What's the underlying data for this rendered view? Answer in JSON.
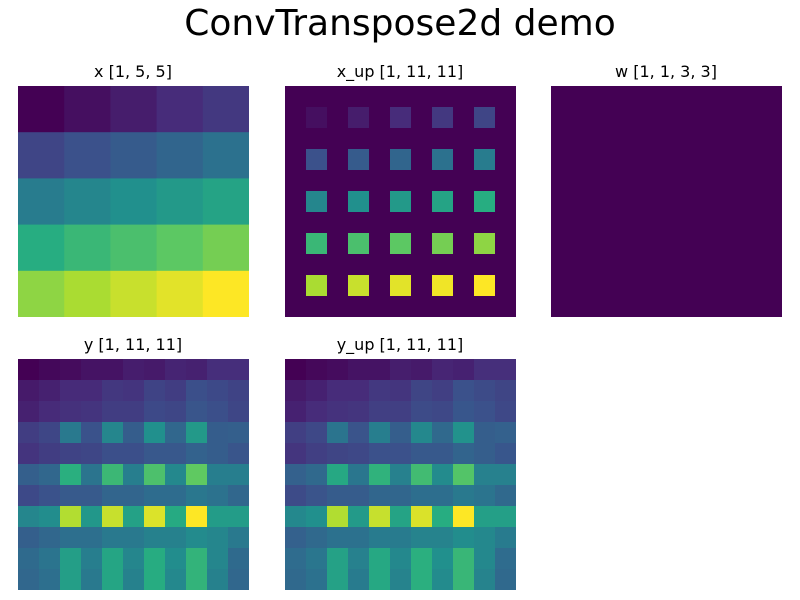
{
  "title": "ConvTranspose2d demo",
  "chart_data": [
    {
      "type": "heatmap",
      "title": "x [1, 5, 5]",
      "colormap": "viridis",
      "grid": false,
      "axes": "off",
      "values": [
        [
          0.0,
          0.04,
          0.08,
          0.125,
          0.167
        ],
        [
          0.21,
          0.25,
          0.29,
          0.33,
          0.375
        ],
        [
          0.42,
          0.46,
          0.5,
          0.54,
          0.58
        ],
        [
          0.625,
          0.67,
          0.71,
          0.75,
          0.79
        ],
        [
          0.83,
          0.875,
          0.92,
          0.96,
          1.0
        ]
      ]
    },
    {
      "type": "heatmap",
      "title": "x_up [1, 11, 11]",
      "colormap": "viridis",
      "grid": false,
      "axes": "off",
      "values": [
        [
          0,
          0,
          0,
          0,
          0,
          0,
          0,
          0,
          0,
          0,
          0
        ],
        [
          0,
          0.04,
          0,
          0.08,
          0,
          0.125,
          0,
          0.167,
          0,
          0.21,
          0
        ],
        [
          0,
          0,
          0,
          0,
          0,
          0,
          0,
          0,
          0,
          0,
          0
        ],
        [
          0,
          0.25,
          0,
          0.29,
          0,
          0.33,
          0,
          0.375,
          0,
          0.42,
          0
        ],
        [
          0,
          0,
          0,
          0,
          0,
          0,
          0,
          0,
          0,
          0,
          0
        ],
        [
          0,
          0.46,
          0,
          0.5,
          0,
          0.54,
          0,
          0.58,
          0,
          0.625,
          0
        ],
        [
          0,
          0,
          0,
          0,
          0,
          0,
          0,
          0,
          0,
          0,
          0
        ],
        [
          0,
          0.67,
          0,
          0.71,
          0,
          0.75,
          0,
          0.79,
          0,
          0.83,
          0
        ],
        [
          0,
          0,
          0,
          0,
          0,
          0,
          0,
          0,
          0,
          0,
          0
        ],
        [
          0,
          0.875,
          0,
          0.92,
          0,
          0.96,
          0,
          0.98,
          0,
          1.0,
          0
        ],
        [
          0,
          0,
          0,
          0,
          0,
          0,
          0,
          0,
          0,
          0,
          0
        ]
      ]
    },
    {
      "type": "heatmap",
      "title": "w [1, 1, 3, 3]",
      "colormap": "viridis",
      "grid": false,
      "axes": "off",
      "values": [
        [
          0,
          0,
          0
        ],
        [
          0,
          0,
          0
        ],
        [
          0,
          0,
          0
        ]
      ]
    },
    {
      "type": "heatmap",
      "title": "y [1, 11, 11]",
      "colormap": "viridis",
      "grid": false,
      "axes": "off",
      "values": [
        [
          0.0,
          0.02,
          0.03,
          0.05,
          0.05,
          0.08,
          0.07,
          0.1,
          0.09,
          0.13,
          0.13
        ],
        [
          0.07,
          0.09,
          0.12,
          0.12,
          0.16,
          0.15,
          0.2,
          0.18,
          0.24,
          0.22,
          0.2
        ],
        [
          0.09,
          0.12,
          0.14,
          0.15,
          0.18,
          0.18,
          0.22,
          0.21,
          0.26,
          0.24,
          0.21
        ],
        [
          0.18,
          0.21,
          0.4,
          0.25,
          0.45,
          0.29,
          0.49,
          0.33,
          0.53,
          0.29,
          0.3
        ],
        [
          0.15,
          0.18,
          0.2,
          0.21,
          0.24,
          0.24,
          0.27,
          0.27,
          0.31,
          0.29,
          0.26
        ],
        [
          0.3,
          0.33,
          0.62,
          0.38,
          0.66,
          0.42,
          0.7,
          0.46,
          0.74,
          0.42,
          0.42
        ],
        [
          0.22,
          0.25,
          0.28,
          0.28,
          0.32,
          0.32,
          0.35,
          0.35,
          0.39,
          0.37,
          0.33
        ],
        [
          0.45,
          0.48,
          0.87,
          0.52,
          0.9,
          0.56,
          0.93,
          0.6,
          0.98,
          0.54,
          0.54
        ],
        [
          0.3,
          0.33,
          0.36,
          0.36,
          0.4,
          0.4,
          0.43,
          0.43,
          0.47,
          0.45,
          0.4
        ],
        [
          0.34,
          0.38,
          0.55,
          0.42,
          0.58,
          0.45,
          0.61,
          0.48,
          0.64,
          0.45,
          0.34
        ],
        [
          0.33,
          0.36,
          0.55,
          0.4,
          0.58,
          0.43,
          0.61,
          0.46,
          0.64,
          0.43,
          0.33
        ]
      ]
    },
    {
      "type": "heatmap",
      "title": "y_up [1, 11, 11]",
      "colormap": "viridis",
      "grid": false,
      "axes": "off",
      "values": [
        [
          0.0,
          0.02,
          0.03,
          0.05,
          0.05,
          0.08,
          0.07,
          0.1,
          0.09,
          0.13,
          0.13
        ],
        [
          0.07,
          0.09,
          0.12,
          0.12,
          0.16,
          0.15,
          0.2,
          0.18,
          0.24,
          0.22,
          0.2
        ],
        [
          0.09,
          0.12,
          0.14,
          0.15,
          0.18,
          0.18,
          0.22,
          0.21,
          0.26,
          0.24,
          0.21
        ],
        [
          0.18,
          0.21,
          0.37,
          0.25,
          0.41,
          0.29,
          0.45,
          0.33,
          0.49,
          0.29,
          0.3
        ],
        [
          0.15,
          0.18,
          0.2,
          0.21,
          0.24,
          0.24,
          0.27,
          0.27,
          0.31,
          0.29,
          0.26
        ],
        [
          0.3,
          0.33,
          0.58,
          0.38,
          0.62,
          0.42,
          0.66,
          0.46,
          0.7,
          0.42,
          0.42
        ],
        [
          0.22,
          0.25,
          0.28,
          0.28,
          0.32,
          0.32,
          0.35,
          0.35,
          0.39,
          0.37,
          0.33
        ],
        [
          0.45,
          0.48,
          0.85,
          0.52,
          0.88,
          0.56,
          0.91,
          0.6,
          0.96,
          0.54,
          0.54
        ],
        [
          0.3,
          0.33,
          0.36,
          0.36,
          0.4,
          0.4,
          0.43,
          0.43,
          0.47,
          0.45,
          0.4
        ],
        [
          0.34,
          0.38,
          0.55,
          0.42,
          0.58,
          0.45,
          0.61,
          0.48,
          0.64,
          0.45,
          0.34
        ],
        [
          0.33,
          0.36,
          0.55,
          0.4,
          0.58,
          0.43,
          0.61,
          0.46,
          0.64,
          0.43,
          0.33
        ]
      ]
    }
  ]
}
